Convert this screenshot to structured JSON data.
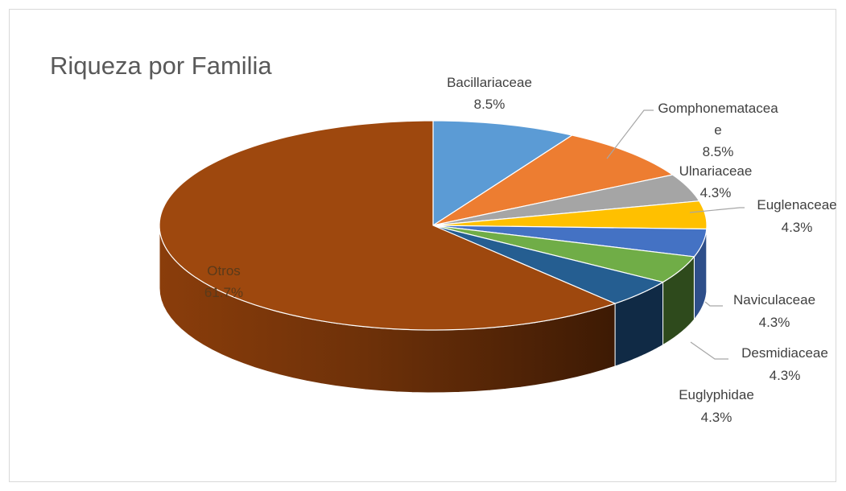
{
  "chart_data": {
    "type": "pie",
    "title": "Riqueza por Familia",
    "slices": [
      {
        "name": "Bacillariaceae",
        "value": 8.5,
        "label_name": "Bacillariaceae",
        "label_pct": "8.5%",
        "color": "#5b9bd5",
        "side_color": "#3f6e99"
      },
      {
        "name": "Gomphonematacea e",
        "value": 8.5,
        "label_name_1": "Gomphonematacea",
        "label_name_2": "e",
        "label_pct": "8.5%",
        "color": "#ed7d31",
        "side_color": "#a9571f"
      },
      {
        "name": "Ulnariaceae",
        "value": 4.3,
        "label_name": "Ulnariaceae",
        "label_pct": "4.3%",
        "color": "#a5a5a5",
        "side_color": "#767676"
      },
      {
        "name": "Euglenaceae",
        "value": 4.3,
        "label_name": "Euglenaceae",
        "label_pct": "4.3%",
        "color": "#ffc000",
        "side_color": "#b68800"
      },
      {
        "name": "Naviculaceae",
        "value": 4.3,
        "label_name": "Naviculaceae",
        "label_pct": "4.3%",
        "color": "#4472c4",
        "side_color": "#2e4f8a"
      },
      {
        "name": "Desmidiaceae",
        "value": 4.3,
        "label_name": "Desmidiaceae",
        "label_pct": "4.3%",
        "color": "#70ad47",
        "side_color": "#2e4a1c"
      },
      {
        "name": "Euglyphidae",
        "value": 4.3,
        "label_name": "Euglyphidae",
        "label_pct": "4.3%",
        "color": "#255e91",
        "side_color": "#102a45"
      },
      {
        "name": "Otros",
        "value": 61.7,
        "label_name": "Otros",
        "label_pct": "61.7%",
        "color": "#9e480e",
        "side_color": "#6e3109"
      }
    ]
  }
}
